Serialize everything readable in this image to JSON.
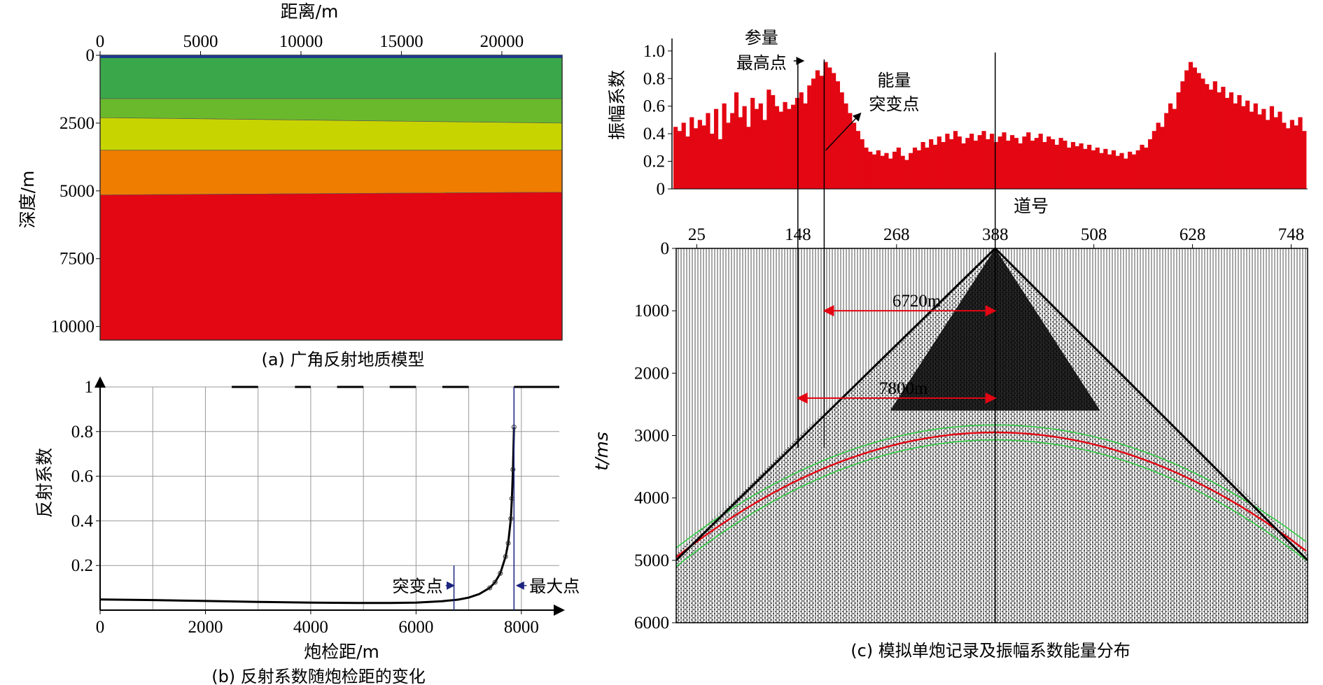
{
  "chart_data": [
    {
      "type": "area",
      "panel": "a",
      "caption": "(a) 广角反射地质模型",
      "xlabel": "距离/m",
      "ylabel": "深度/m",
      "x_ticks": [
        "0",
        "5000",
        "10000",
        "15000",
        "20000"
      ],
      "y_ticks": [
        "0",
        "2500",
        "5000",
        "7500",
        "10000"
      ],
      "xlim": [
        0,
        23000
      ],
      "ylim": [
        0,
        10500
      ],
      "layers": [
        {
          "color": "#3aa84a",
          "top": [
            0,
            0
          ],
          "bottom": [
            1600,
            1600
          ]
        },
        {
          "color": "#6ab92c",
          "top": [
            1600,
            1600
          ],
          "bottom": [
            2300,
            2500
          ]
        },
        {
          "color": "#c8d400",
          "top": [
            2300,
            2500
          ],
          "bottom": [
            3500,
            3500
          ]
        },
        {
          "color": "#ee7d00",
          "top": [
            3500,
            3500
          ],
          "bottom": [
            5150,
            5050
          ]
        },
        {
          "color": "#e30613",
          "top": [
            5150,
            5050
          ],
          "bottom": [
            10500,
            10500
          ]
        }
      ]
    },
    {
      "type": "line",
      "panel": "b",
      "caption": "(b) 反射系数随炮检距的变化",
      "xlabel": "炮检距/m",
      "ylabel": "反射系数",
      "x_ticks": [
        "0",
        "2000",
        "4000",
        "6000",
        "8000"
      ],
      "y_ticks": [
        "0.2",
        "0.4",
        "0.6",
        "0.8",
        "1"
      ],
      "xlim": [
        0,
        8800
      ],
      "ylim": [
        0,
        1
      ],
      "x": [
        0,
        1000,
        2000,
        3000,
        4000,
        5000,
        5500,
        6000,
        6500,
        6800,
        7000,
        7200,
        7400,
        7500,
        7600,
        7700,
        7750,
        7800,
        7820,
        7840,
        7860
      ],
      "y": [
        0.048,
        0.045,
        0.041,
        0.037,
        0.034,
        0.032,
        0.032,
        0.034,
        0.04,
        0.047,
        0.056,
        0.072,
        0.1,
        0.125,
        0.165,
        0.24,
        0.3,
        0.41,
        0.5,
        0.63,
        0.82
      ],
      "flat_top_from": 7860,
      "annotations": [
        {
          "text": "突变点",
          "x": 6720
        },
        {
          "text": "最大点",
          "x": 7860
        }
      ]
    },
    {
      "type": "bar",
      "panel": "c-top",
      "xlabel": "道号",
      "ylabel": "振幅系数",
      "y_ticks": [
        "0",
        "0.2",
        "0.4",
        "0.6",
        "0.8",
        "1.0"
      ],
      "ylim": [
        0,
        1.05
      ],
      "values": [
        0.45,
        0.42,
        0.48,
        0.38,
        0.52,
        0.44,
        0.5,
        0.46,
        0.55,
        0.4,
        0.58,
        0.36,
        0.62,
        0.48,
        0.55,
        0.7,
        0.52,
        0.6,
        0.45,
        0.66,
        0.58,
        0.62,
        0.5,
        0.72,
        0.68,
        0.6,
        0.56,
        0.63,
        0.58,
        0.61,
        0.66,
        0.7,
        0.62,
        0.75,
        0.8,
        0.86,
        0.82,
        0.92,
        0.88,
        0.84,
        0.78,
        0.7,
        0.62,
        0.55,
        0.48,
        0.42,
        0.36,
        0.3,
        0.27,
        0.25,
        0.28,
        0.24,
        0.26,
        0.22,
        0.27,
        0.3,
        0.24,
        0.21,
        0.26,
        0.3,
        0.28,
        0.34,
        0.3,
        0.36,
        0.32,
        0.38,
        0.34,
        0.4,
        0.36,
        0.42,
        0.38,
        0.33,
        0.37,
        0.4,
        0.35,
        0.39,
        0.42,
        0.36,
        0.4,
        0.34,
        0.38,
        0.41,
        0.35,
        0.39,
        0.37,
        0.33,
        0.38,
        0.41,
        0.35,
        0.37,
        0.4,
        0.34,
        0.38,
        0.36,
        0.32,
        0.37,
        0.35,
        0.3,
        0.34,
        0.31,
        0.33,
        0.29,
        0.32,
        0.28,
        0.3,
        0.26,
        0.29,
        0.25,
        0.28,
        0.24,
        0.26,
        0.22,
        0.27,
        0.25,
        0.28,
        0.32,
        0.3,
        0.36,
        0.42,
        0.48,
        0.45,
        0.55,
        0.62,
        0.58,
        0.7,
        0.78,
        0.86,
        0.92,
        0.88,
        0.84,
        0.8,
        0.76,
        0.72,
        0.78,
        0.7,
        0.74,
        0.66,
        0.7,
        0.62,
        0.68,
        0.6,
        0.64,
        0.56,
        0.62,
        0.54,
        0.58,
        0.5,
        0.6,
        0.52,
        0.56,
        0.48,
        0.44,
        0.5,
        0.46,
        0.52,
        0.42
      ]
    },
    {
      "type": "scatter",
      "panel": "c-bottom",
      "caption": "(c) 模拟单炮记录及振幅系数能量分布",
      "ylabel": "t/ms",
      "x_ticks": [
        "25",
        "148",
        "268",
        "388",
        "508",
        "628",
        "748"
      ],
      "y_ticks": [
        "0",
        "1000",
        "2000",
        "3000",
        "4000",
        "5000",
        "6000"
      ],
      "ylim": [
        0,
        6000
      ],
      "shot_trace": 388,
      "markers": [
        {
          "label": "参量最高点",
          "trace": 148
        },
        {
          "label": "能量突变点",
          "trace": 180
        }
      ],
      "offsets": [
        {
          "text": "6720m",
          "t": 1000,
          "from_trace": 180,
          "to_trace": 388
        },
        {
          "text": "7800m",
          "t": 2400,
          "from_trace": 148,
          "to_trace": 388
        }
      ],
      "reflection_apex_ms": 2950,
      "reflection_edge_ms": 4950
    }
  ]
}
